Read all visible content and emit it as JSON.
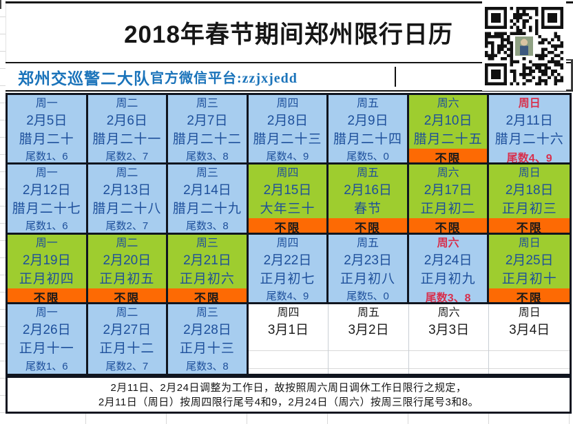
{
  "title": "2018年春节期间郑州限行日历",
  "subtitle": {
    "org": "郑州交巡警二大队",
    "platform": "官方微信平台:zzjxjedd"
  },
  "qr_code": {
    "icon": "qr-code"
  },
  "calendar": {
    "rows": [
      {
        "cells": [
          {
            "weekday": "周一",
            "date": "2月5日",
            "lunar": "腊月二十",
            "restriction": "尾数1、6",
            "type": "restricted"
          },
          {
            "weekday": "周二",
            "date": "2月6日",
            "lunar": "腊月二十一",
            "restriction": "尾数2、7",
            "type": "restricted"
          },
          {
            "weekday": "周三",
            "date": "2月7日",
            "lunar": "腊月二十二",
            "restriction": "尾数3、8",
            "type": "restricted"
          },
          {
            "weekday": "周四",
            "date": "2月8日",
            "lunar": "腊月二十三",
            "restriction": "尾数4、9",
            "type": "restricted"
          },
          {
            "weekday": "周五",
            "date": "2月9日",
            "lunar": "腊月二十四",
            "restriction": "尾数5、0",
            "type": "restricted"
          },
          {
            "weekday": "周六",
            "date": "2月10日",
            "lunar": "腊月二十五",
            "restriction": "不限",
            "type": "free"
          },
          {
            "weekday": "周日",
            "date": "2月11日",
            "lunar": "腊月二十六",
            "restriction": "尾数4、9",
            "type": "adjusted"
          }
        ]
      },
      {
        "cells": [
          {
            "weekday": "周一",
            "date": "2月12日",
            "lunar": "腊月二十七",
            "restriction": "尾数1、6",
            "type": "restricted"
          },
          {
            "weekday": "周二",
            "date": "2月13日",
            "lunar": "腊月二十八",
            "restriction": "尾数2、7",
            "type": "restricted"
          },
          {
            "weekday": "周三",
            "date": "2月14日",
            "lunar": "腊月二十九",
            "restriction": "尾数3、8",
            "type": "restricted"
          },
          {
            "weekday": "周四",
            "date": "2月15日",
            "lunar": "大年三十",
            "restriction": "不限",
            "type": "free"
          },
          {
            "weekday": "周五",
            "date": "2月16日",
            "lunar": "春节",
            "restriction": "不限",
            "type": "free"
          },
          {
            "weekday": "周六",
            "date": "2月17日",
            "lunar": "正月初二",
            "restriction": "不限",
            "type": "free"
          },
          {
            "weekday": "周日",
            "date": "2月18日",
            "lunar": "正月初三",
            "restriction": "不限",
            "type": "free"
          }
        ]
      },
      {
        "cells": [
          {
            "weekday": "周一",
            "date": "2月19日",
            "lunar": "正月初四",
            "restriction": "不限",
            "type": "free"
          },
          {
            "weekday": "周二",
            "date": "2月20日",
            "lunar": "正月初五",
            "restriction": "不限",
            "type": "free"
          },
          {
            "weekday": "周三",
            "date": "2月21日",
            "lunar": "正月初六",
            "restriction": "不限",
            "type": "free"
          },
          {
            "weekday": "周四",
            "date": "2月22日",
            "lunar": "正月初七",
            "restriction": "尾数4、9",
            "type": "restricted"
          },
          {
            "weekday": "周五",
            "date": "2月23日",
            "lunar": "正月初八",
            "restriction": "尾数5、0",
            "type": "restricted"
          },
          {
            "weekday": "周六",
            "date": "2月24日",
            "lunar": "正月初九",
            "restriction": "尾数3、8",
            "type": "adjusted"
          },
          {
            "weekday": "周日",
            "date": "2月25日",
            "lunar": "正月初十",
            "restriction": "不限",
            "type": "free"
          }
        ]
      },
      {
        "cells": [
          {
            "weekday": "周一",
            "date": "2月26日",
            "lunar": "正月十一",
            "restriction": "尾数1、6",
            "type": "restricted"
          },
          {
            "weekday": "周二",
            "date": "2月27日",
            "lunar": "正月十二",
            "restriction": "尾数2、7",
            "type": "restricted"
          },
          {
            "weekday": "周三",
            "date": "2月28日",
            "lunar": "正月十三",
            "restriction": "尾数3、8",
            "type": "restricted"
          },
          {
            "weekday": "周四",
            "date": "3月1日",
            "lunar": "",
            "restriction": "",
            "type": "plain"
          },
          {
            "weekday": "周五",
            "date": "3月2日",
            "lunar": "",
            "restriction": "",
            "type": "plain"
          },
          {
            "weekday": "周六",
            "date": "3月3日",
            "lunar": "",
            "restriction": "",
            "type": "plain"
          },
          {
            "weekday": "周日",
            "date": "3月4日",
            "lunar": "",
            "restriction": "",
            "type": "plain"
          }
        ]
      }
    ]
  },
  "note": {
    "line1": "2月11日、2月24日调整为工作日，故按照周六周日调休工作日限行之规定，",
    "line2": "2月11日（周日）按周四限行尾号4和9，2月24日（周六）按周三限行尾号3和8。"
  },
  "colors": {
    "restricted_cell": "#a7cdef",
    "free_cell": "#9ecd2f",
    "no_limit_strip": "#fd6a04",
    "cell_text_blue": "#1d4f9b",
    "adjusted_text_red": "#d8304d",
    "subtitle_blue": "#1a73ba",
    "grid_border": "#10151f"
  }
}
